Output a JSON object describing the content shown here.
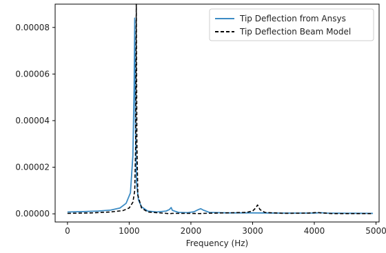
{
  "chart_data": {
    "type": "line",
    "title": "",
    "xlabel": "Frequency (Hz)",
    "ylabel": "",
    "xlim": [
      -200,
      5050
    ],
    "ylim": [
      -3.5e-06,
      9e-05
    ],
    "xticks": [
      0,
      1000,
      2000,
      3000,
      4000,
      5000
    ],
    "xtick_labels": [
      "0",
      "1000",
      "2000",
      "3000",
      "4000",
      "5000"
    ],
    "yticks": [
      0,
      2e-05,
      4e-05,
      6e-05,
      8e-05
    ],
    "ytick_labels": [
      "0.00000",
      "0.00002",
      "0.00004",
      "0.00006",
      "0.00008"
    ],
    "grid": false,
    "legend_position": "top-right",
    "series": [
      {
        "name": "Tip Deflection from Ansys",
        "color": "#3b8bc4",
        "dash": "solid",
        "points": [
          [
            0,
            8e-07
          ],
          [
            300,
            1e-06
          ],
          [
            500,
            1.2e-06
          ],
          [
            700,
            1.6e-06
          ],
          [
            850,
            2.5e-06
          ],
          [
            950,
            4.5e-06
          ],
          [
            1020,
            9e-06
          ],
          [
            1060,
            2.5e-05
          ],
          [
            1080,
            5.5e-05
          ],
          [
            1090,
            8.4e-05
          ],
          [
            1100,
            4e-05
          ],
          [
            1120,
            1.3e-05
          ],
          [
            1150,
            6e-06
          ],
          [
            1200,
            3e-06
          ],
          [
            1300,
            1.2e-06
          ],
          [
            1450,
            8e-07
          ],
          [
            1600,
            1.2e-06
          ],
          [
            1650,
            1.8e-06
          ],
          [
            1680,
            2.7e-06
          ],
          [
            1700,
            1.5e-06
          ],
          [
            1800,
            6e-07
          ],
          [
            1950,
            5e-07
          ],
          [
            2050,
            9e-07
          ],
          [
            2120,
            1.8e-06
          ],
          [
            2160,
            2.2e-06
          ],
          [
            2200,
            1.6e-06
          ],
          [
            2300,
            6e-07
          ],
          [
            2600,
            4e-07
          ],
          [
            3000,
            4e-07
          ],
          [
            3500,
            3e-07
          ],
          [
            4000,
            3e-07
          ],
          [
            4100,
            5e-07
          ],
          [
            4200,
            3e-07
          ],
          [
            4950,
            2e-07
          ]
        ]
      },
      {
        "name": "Tip Deflection Beam Model",
        "color": "#000000",
        "dash": "dashed",
        "points": [
          [
            0,
            2e-07
          ],
          [
            400,
            4e-07
          ],
          [
            700,
            8e-07
          ],
          [
            900,
            1.4e-06
          ],
          [
            1000,
            2.5e-06
          ],
          [
            1060,
            5e-06
          ],
          [
            1090,
            1e-05
          ],
          [
            1105,
            3e-05
          ],
          [
            1115,
            9e-05
          ],
          [
            1125,
            3e-05
          ],
          [
            1140,
            8e-06
          ],
          [
            1200,
            2.5e-06
          ],
          [
            1300,
            8e-07
          ],
          [
            1600,
            2e-07
          ],
          [
            1650,
            5e-08
          ],
          [
            1700,
            2e-07
          ],
          [
            2000,
            2e-07
          ],
          [
            2150,
            1e-07
          ],
          [
            2200,
            2e-07
          ],
          [
            2900,
            6e-07
          ],
          [
            3000,
            1.2e-06
          ],
          [
            3050,
            2.5e-06
          ],
          [
            3080,
            3.8e-06
          ],
          [
            3120,
            1.8e-06
          ],
          [
            3200,
            6e-07
          ],
          [
            3500,
            2e-07
          ],
          [
            3900,
            3e-07
          ],
          [
            4050,
            6e-07
          ],
          [
            4100,
            4e-07
          ],
          [
            4300,
            1e-07
          ],
          [
            4950,
            1e-07
          ]
        ]
      }
    ]
  }
}
